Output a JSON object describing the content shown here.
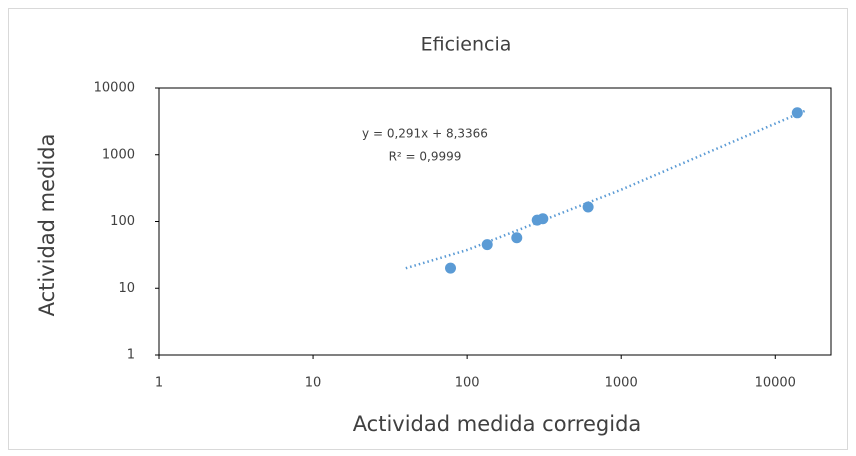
{
  "chart_data": {
    "type": "scatter",
    "title": "Eficiencia",
    "x_label": "Actividad medida corregida",
    "y_label": "Actividad medida",
    "x_log": true,
    "y_log": true,
    "xlim": [
      1,
      23000
    ],
    "ylim": [
      1,
      10000
    ],
    "xticks": [
      1,
      10,
      100,
      1000,
      10000
    ],
    "yticks": [
      1,
      10,
      100,
      1000,
      10000
    ],
    "color": "#5b9bd5",
    "x": [
      78,
      135,
      210,
      285,
      310,
      610,
      13900
    ],
    "values": [
      20,
      45,
      57,
      105,
      110,
      165,
      4250
    ],
    "trendline": {
      "x": [
        40,
        100,
        1000,
        16000
      ],
      "values": [
        20,
        37.4,
        299,
        4664
      ]
    },
    "annotations": [
      "y = 0,291x + 8,3366",
      "R² = 0,9999"
    ]
  }
}
